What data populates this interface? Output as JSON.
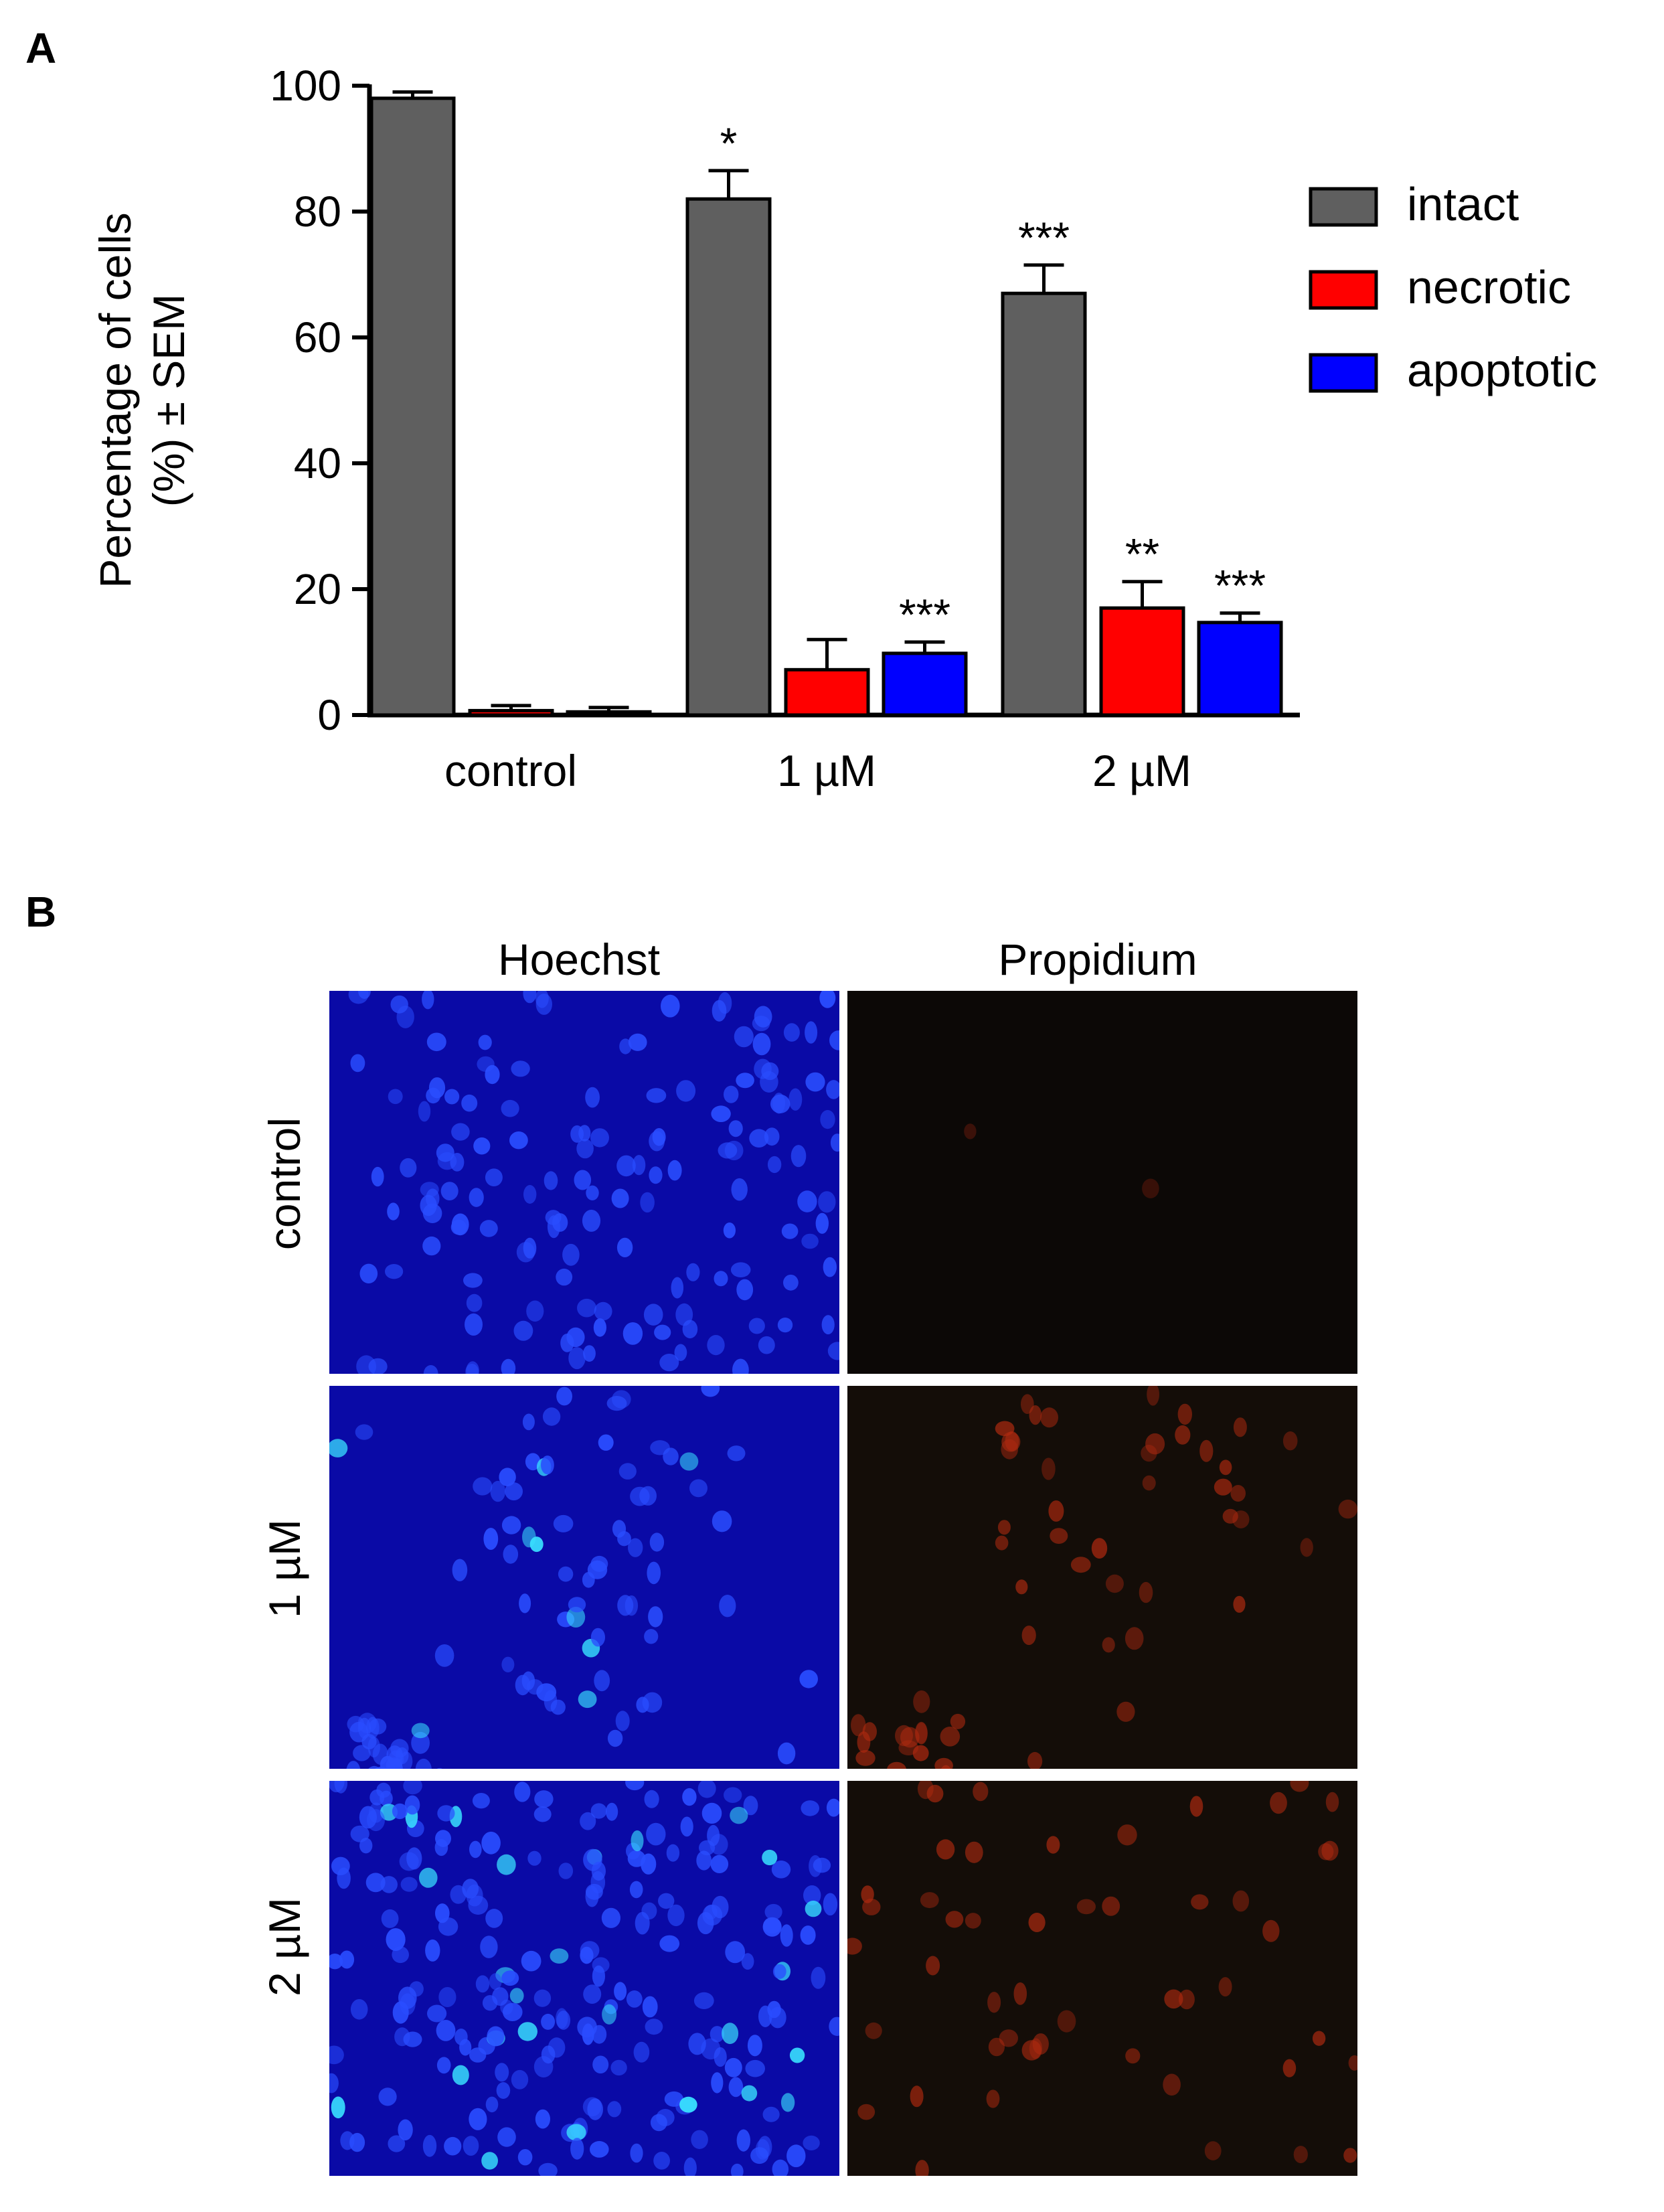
{
  "panel_a": {
    "letter": "A"
  },
  "panel_b": {
    "letter": "B",
    "columns": [
      "Hoechst",
      "Propidium"
    ],
    "rows": [
      "control",
      "1 µM",
      "2 µM"
    ]
  },
  "colors": {
    "intact": "#5f5f5f",
    "necrotic": "#ff0000",
    "apoptotic": "#0000ff",
    "hoechst_background": "#0a0aa6",
    "hoechst_nucleus": "#2a4dff",
    "hoechst_bright": "#39e0ff",
    "propidium_background": "#0c0806",
    "propidium_dim_background": "#140d08",
    "propidium_nucleus": "#b02a10"
  },
  "chart_data": {
    "type": "bar",
    "title": "",
    "xlabel": "",
    "ylabel": "Percentage of cells (%) ± SEM",
    "ylabel_lines": [
      "Percentage of cells",
      "(%) ± SEM"
    ],
    "ylim": [
      0,
      100
    ],
    "yticks": [
      0,
      20,
      40,
      60,
      80,
      100
    ],
    "categories": [
      "control",
      "1 µM",
      "2 µM"
    ],
    "legend_position": "right",
    "series": [
      {
        "name": "intact",
        "color_key": "intact",
        "values": [
          98,
          82,
          67
        ],
        "errors": [
          1,
          4.5,
          4.5
        ],
        "significance": [
          "",
          "*",
          "***"
        ]
      },
      {
        "name": "necrotic",
        "color_key": "necrotic",
        "values": [
          0.7,
          7.2,
          17
        ],
        "errors": [
          0.8,
          4.8,
          4.2
        ],
        "significance": [
          "",
          "",
          "**"
        ]
      },
      {
        "name": "apoptotic",
        "color_key": "apoptotic",
        "values": [
          0.5,
          9.8,
          14.7
        ],
        "errors": [
          0.7,
          1.8,
          1.5
        ],
        "significance": [
          "",
          "***",
          "***"
        ]
      }
    ]
  }
}
